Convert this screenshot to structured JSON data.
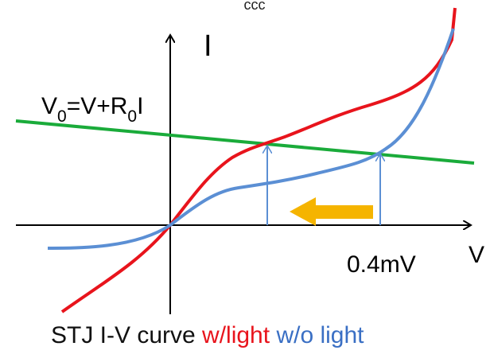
{
  "diagram": {
    "top_mark": "ccc",
    "axis_i_label": "I",
    "axis_v_label": "V",
    "equation": {
      "v": "V",
      "sub0": "0",
      "middle": "=V+R",
      "sub1": "0",
      "tail": "I"
    },
    "voltage_label": "0.4mV",
    "caption": {
      "prefix": "STJ I-V curve ",
      "with_light": "w/light",
      "separator": " ",
      "without_light": "w/o light"
    },
    "colors": {
      "axis": "#000000",
      "load_line": "#1aab3a",
      "curve_with_light": "#e8141c",
      "curve_without_light": "#5b8fd4",
      "arrow_thin": "#5b8fd4",
      "arrow_shift": "#f5b400",
      "caption_text": "#111111"
    }
  }
}
